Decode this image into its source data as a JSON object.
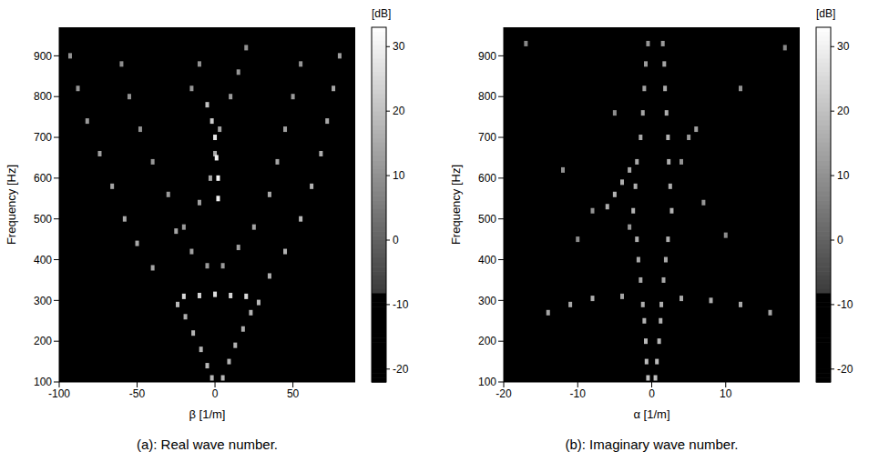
{
  "chart_data": [
    {
      "type": "scatter",
      "title": "(a): Real wave number.",
      "x_label": "β  [1/m]",
      "y_label": "Frequency [Hz]",
      "xlim": [
        -100,
        90
      ],
      "xticks": [
        -100,
        -50,
        0,
        50
      ],
      "ylim": [
        100,
        970
      ],
      "yticks": [
        100,
        200,
        300,
        400,
        500,
        600,
        700,
        800,
        900
      ],
      "grid": false,
      "colorbar": {
        "range": [
          -22,
          33
        ],
        "ticks": [
          -20,
          -10,
          0,
          10,
          20,
          30
        ],
        "label": "[dB]"
      },
      "x": [
        -2,
        -5,
        -9,
        -14,
        -19,
        -24,
        5,
        9,
        13,
        18,
        23,
        28,
        -20,
        -10,
        0,
        10,
        20,
        -40,
        -50,
        -58,
        -66,
        -74,
        -82,
        -88,
        -93,
        35,
        45,
        55,
        62,
        68,
        72,
        76,
        80,
        -25,
        -15,
        -5,
        5,
        15,
        25,
        -20,
        -10,
        -3,
        0,
        3,
        35,
        40,
        45,
        50,
        55,
        2,
        2,
        1,
        0,
        -2,
        -5,
        -30,
        -40,
        -48,
        -55,
        -60,
        10,
        15,
        20,
        -15,
        -10
      ],
      "values": [
        110,
        140,
        180,
        220,
        260,
        290,
        110,
        150,
        190,
        230,
        270,
        295,
        310,
        312,
        315,
        312,
        310,
        380,
        440,
        500,
        580,
        660,
        740,
        820,
        900,
        360,
        420,
        500,
        580,
        660,
        740,
        820,
        900,
        470,
        420,
        385,
        385,
        430,
        480,
        480,
        540,
        600,
        660,
        720,
        560,
        640,
        720,
        800,
        880,
        550,
        600,
        650,
        700,
        740,
        780,
        560,
        640,
        720,
        800,
        880,
        800,
        860,
        920,
        820,
        880
      ],
      "magnitudes": [
        18,
        18,
        17,
        17,
        16,
        18,
        18,
        17,
        17,
        16,
        17,
        18,
        25,
        24,
        26,
        24,
        25,
        14,
        15,
        15,
        14,
        13,
        12,
        11,
        10,
        16,
        17,
        18,
        17,
        16,
        15,
        14,
        13,
        14,
        13,
        12,
        12,
        13,
        14,
        12,
        13,
        14,
        15,
        14,
        15,
        14,
        13,
        12,
        11,
        30,
        31,
        30,
        28,
        22,
        20,
        12,
        11,
        10,
        10,
        9,
        12,
        11,
        10,
        11,
        10
      ]
    },
    {
      "type": "scatter",
      "title": "(b): Imaginary wave number.",
      "x_label": "α  [1/m]",
      "y_label": "Frequency [Hz]",
      "xlim": [
        -20,
        20
      ],
      "xticks": [
        -20,
        -10,
        0,
        10
      ],
      "ylim": [
        100,
        970
      ],
      "yticks": [
        100,
        200,
        300,
        400,
        500,
        600,
        700,
        800,
        900
      ],
      "grid": false,
      "colorbar": {
        "range": [
          -22,
          33
        ],
        "ticks": [
          -20,
          -10,
          0,
          10,
          20,
          30
        ],
        "label": "[dB]"
      },
      "x": [
        -0.5,
        -0.7,
        -0.8,
        -1,
        -1.2,
        -1.5,
        -1.8,
        -2,
        -2.5,
        -2.2,
        -2,
        -1.5,
        -1.2,
        -1,
        -0.8,
        -0.5,
        0.5,
        0.7,
        1,
        1.2,
        1.3,
        1.6,
        1.9,
        2.2,
        2.7,
        2.5,
        2.3,
        2.2,
        2,
        1.8,
        1.7,
        1.5,
        -14,
        -11,
        -8,
        -4,
        4,
        8,
        12,
        16,
        -6,
        -5,
        -4,
        -3,
        -8,
        -3,
        5,
        6,
        -10,
        10,
        12,
        -12,
        7,
        -5,
        4,
        18,
        -17
      ],
      "values": [
        110,
        150,
        200,
        250,
        290,
        350,
        400,
        450,
        520,
        580,
        640,
        700,
        760,
        820,
        880,
        930,
        110,
        150,
        200,
        250,
        290,
        350,
        400,
        450,
        520,
        580,
        640,
        700,
        760,
        820,
        880,
        930,
        270,
        290,
        305,
        310,
        305,
        300,
        290,
        270,
        530,
        560,
        590,
        620,
        520,
        480,
        700,
        720,
        450,
        460,
        820,
        620,
        540,
        760,
        640,
        920,
        930
      ],
      "magnitudes": [
        20,
        19,
        18,
        17,
        16,
        15,
        15,
        16,
        17,
        16,
        15,
        15,
        14,
        13,
        12,
        11,
        20,
        19,
        18,
        17,
        16,
        15,
        15,
        16,
        17,
        16,
        16,
        17,
        16,
        15,
        14,
        12,
        14,
        15,
        16,
        14,
        15,
        16,
        15,
        14,
        16,
        17,
        16,
        15,
        10,
        11,
        12,
        13,
        9,
        9,
        10,
        10,
        11,
        9,
        10,
        8,
        8
      ]
    }
  ]
}
